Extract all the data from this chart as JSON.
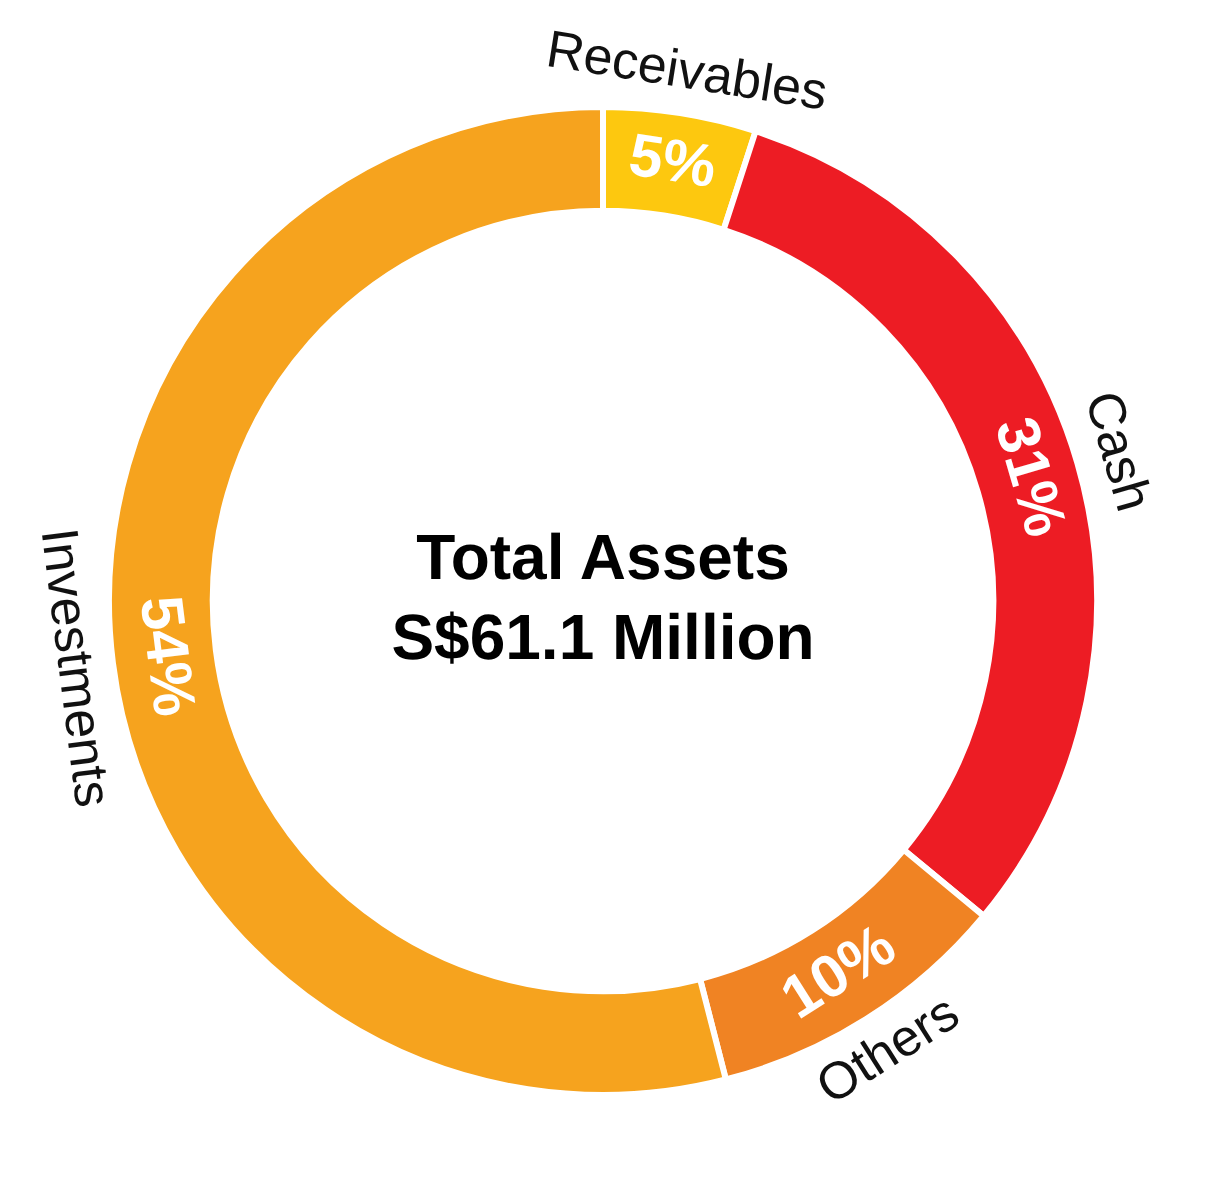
{
  "chart_data": {
    "type": "donut",
    "title": "Total Assets",
    "subtitle": "S$61.1 Million",
    "categories": [
      "Receivables",
      "Cash",
      "Others",
      "Investments"
    ],
    "values": [
      5,
      31,
      10,
      54
    ],
    "colors": [
      "#fdc80f",
      "#ed1c24",
      "#f08323",
      "#f6a31e"
    ],
    "value_labels": [
      "5%",
      "31%",
      "10%",
      "54%"
    ],
    "legend": false
  }
}
